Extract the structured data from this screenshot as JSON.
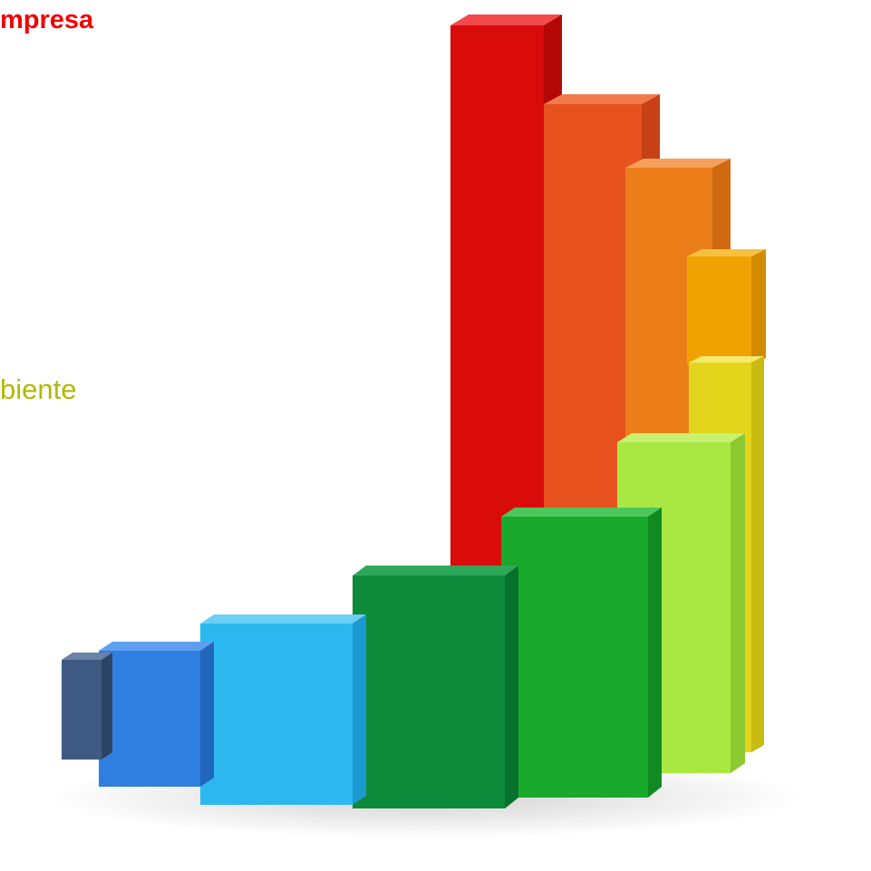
{
  "slide": {
    "heading_fragment": "mpresa",
    "subtitle_fragment": "biente"
  },
  "illustration": {
    "icon": "bar-chart-graphic-icon",
    "bar_colors": [
      "#3f5a82",
      "#2f7fe0",
      "#2cb8ef",
      "#0d8a3a",
      "#18a82c",
      "#a9e843",
      "#e3d51c",
      "#f0a300",
      "#ec7e1a",
      "#ea5a22",
      "#de1010"
    ]
  }
}
